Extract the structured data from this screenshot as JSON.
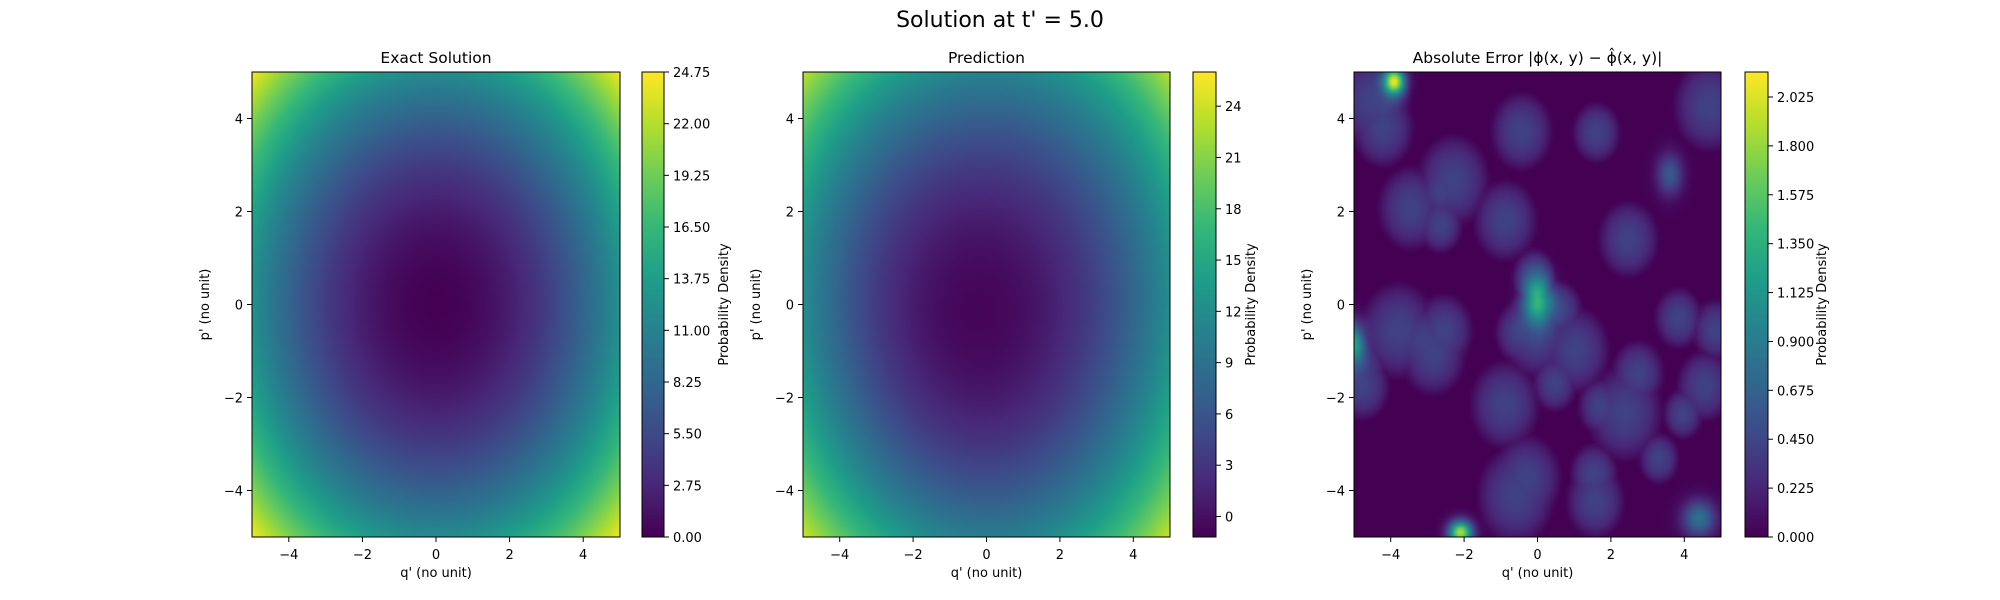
{
  "suptitle": "Solution at t' = 5.0",
  "chart_data": [
    {
      "type": "heatmap",
      "title": "Exact Solution",
      "xlabel": "q' (no unit)",
      "ylabel": "p' (no unit)",
      "xlim": [
        -5,
        5
      ],
      "ylim": [
        -5,
        5
      ],
      "xticks": [
        -4,
        -2,
        0,
        2,
        4
      ],
      "yticks": [
        -4,
        -2,
        0,
        2,
        4
      ],
      "xtick_labels": [
        "−4",
        "−2",
        "0",
        "2",
        "4"
      ],
      "ytick_labels": [
        "−4",
        "−2",
        "0",
        "2",
        "4"
      ],
      "colormap": "viridis",
      "colorbar_label": "Probability Density",
      "colorbar_range": [
        0,
        24.75
      ],
      "colorbar_ticks": [
        0,
        2.75,
        5.5,
        8.25,
        11,
        13.75,
        16.5,
        19.25,
        22,
        24.75
      ],
      "colorbar_tick_labels": [
        "0.00",
        "2.75",
        "5.50",
        "8.25",
        "11.00",
        "13.75",
        "16.50",
        "19.25",
        "22.00",
        "24.75"
      ],
      "field": "exact"
    },
    {
      "type": "heatmap",
      "title": "Prediction",
      "xlabel": "q' (no unit)",
      "ylabel": "p' (no unit)",
      "xlim": [
        -5,
        5
      ],
      "ylim": [
        -5,
        5
      ],
      "xticks": [
        -4,
        -2,
        0,
        2,
        4
      ],
      "yticks": [
        -4,
        -2,
        0,
        2,
        4
      ],
      "xtick_labels": [
        "−4",
        "−2",
        "0",
        "2",
        "4"
      ],
      "ytick_labels": [
        "−4",
        "−2",
        "0",
        "2",
        "4"
      ],
      "colormap": "viridis",
      "colorbar_label": "Probability Density",
      "colorbar_range": [
        -1.2,
        26
      ],
      "colorbar_ticks": [
        0,
        3,
        6,
        9,
        12,
        15,
        18,
        21,
        24
      ],
      "colorbar_tick_labels": [
        "0",
        "3",
        "6",
        "9",
        "12",
        "15",
        "18",
        "21",
        "24"
      ],
      "field": "prediction"
    },
    {
      "type": "heatmap",
      "title": "Absolute Error |ϕ(x, y) − ϕ̂(x, y)|",
      "xlabel": "q' (no unit)",
      "ylabel": "p' (no unit)",
      "xlim": [
        -5,
        5
      ],
      "ylim": [
        -5,
        5
      ],
      "xticks": [
        -4,
        -2,
        0,
        2,
        4
      ],
      "yticks": [
        -4,
        -2,
        0,
        2,
        4
      ],
      "xtick_labels": [
        "−4",
        "−2",
        "0",
        "2",
        "4"
      ],
      "ytick_labels": [
        "−4",
        "−2",
        "0",
        "2",
        "4"
      ],
      "colormap": "viridis",
      "colorbar_label": "Probability Density",
      "colorbar_range": [
        0,
        2.14
      ],
      "colorbar_ticks": [
        0,
        0.225,
        0.45,
        0.675,
        0.9,
        1.125,
        1.35,
        1.575,
        1.8,
        2.025
      ],
      "colorbar_tick_labels": [
        "0.000",
        "0.225",
        "0.450",
        "0.675",
        "0.900",
        "1.125",
        "1.350",
        "1.575",
        "1.800",
        "2.025"
      ],
      "field": "error"
    }
  ]
}
